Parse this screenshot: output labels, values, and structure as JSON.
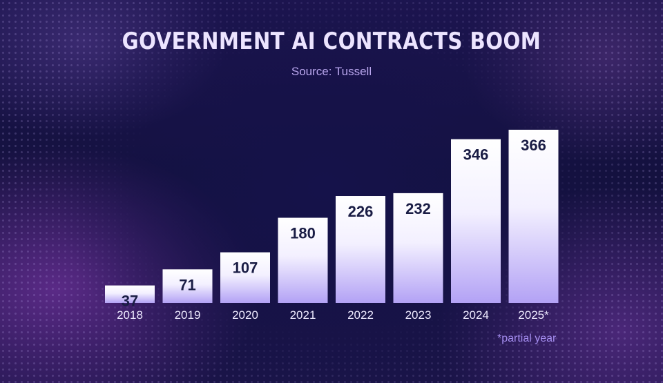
{
  "title": "GOVERNMENT AI CONTRACTS BOOM",
  "subtitle": "Source: Tussell",
  "footnote": "*partial year",
  "chart_data": {
    "type": "bar",
    "title": "GOVERNMENT AI CONTRACTS BOOM",
    "subtitle": "Source: Tussell",
    "categories": [
      "2018",
      "2019",
      "2020",
      "2021",
      "2022",
      "2023",
      "2024",
      "2025*"
    ],
    "values": [
      37,
      71,
      107,
      180,
      226,
      232,
      346,
      366
    ],
    "xlabel": "",
    "ylabel": "",
    "ylim": [
      0,
      366
    ],
    "grid": false,
    "data_labels": true,
    "annotations": [
      "*partial year"
    ],
    "colors": {
      "bar_top": "#ffffff",
      "bar_bottom": "#b3a2f5"
    }
  }
}
